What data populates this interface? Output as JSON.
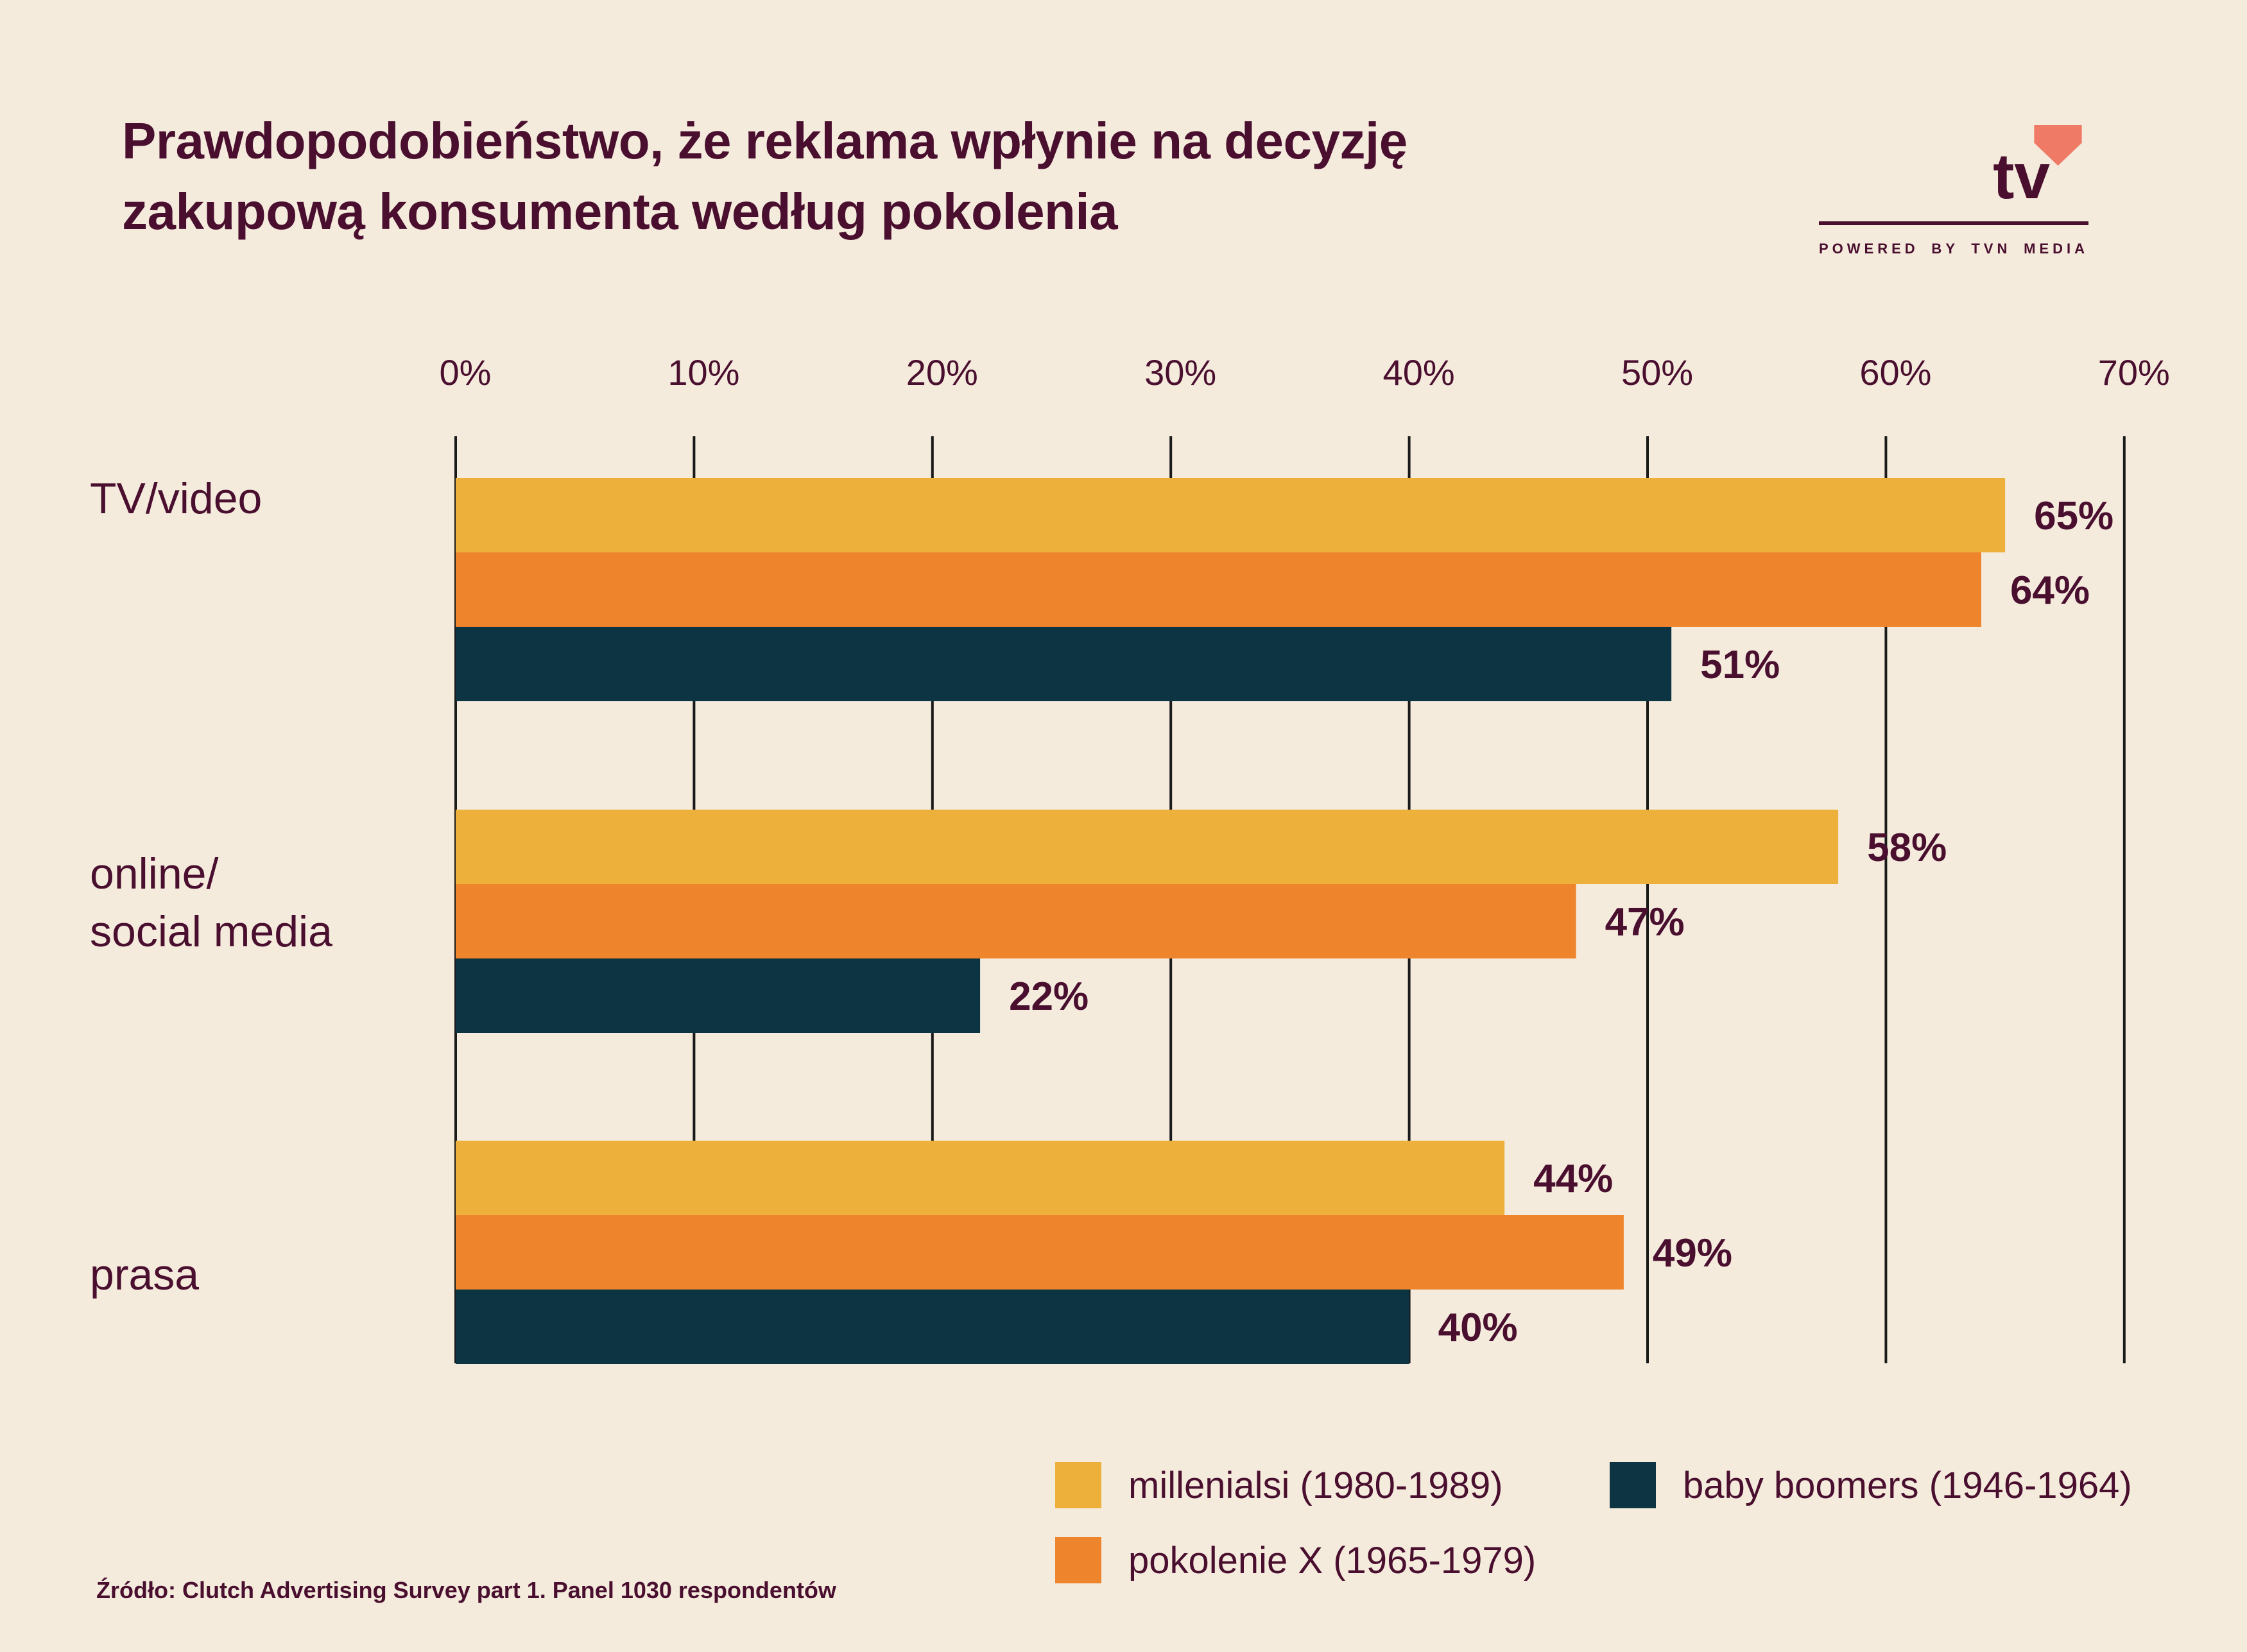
{
  "title": {
    "line1": "Prawdopodobieństwo, że reklama wpłynie na decyzję",
    "line2": "zakupową konsumenta według pokolenia"
  },
  "logo": {
    "mark": "tv",
    "icon": "heart-icon",
    "caption": "POWERED BY TVN MEDIA"
  },
  "source": "Źródło: Clutch Advertising Survey part 1. Panel 1030 respondentów",
  "colors": {
    "background": "#f4ebdd",
    "text": "#4a0f2f",
    "millenials": "#ecb03b",
    "genx": "#ee842c",
    "boomers": "#0c3442",
    "heart": "#ef7b66"
  },
  "chart_data": {
    "type": "bar",
    "orientation": "horizontal",
    "title": "Prawdopodobieństwo, że reklama wpłynie na decyzję zakupową konsumenta według pokolenia",
    "categories": [
      {
        "lines": [
          "TV/video"
        ]
      },
      {
        "lines": [
          "online/",
          "social media"
        ]
      },
      {
        "lines": [
          "prasa"
        ]
      }
    ],
    "series": [
      {
        "name": "millenialsi (1980-1989)",
        "color": "#ecb03b",
        "values": [
          65,
          58,
          44
        ]
      },
      {
        "name": "pokolenie X (1965-1979)",
        "color": "#ee842c",
        "values": [
          64,
          47,
          49
        ]
      },
      {
        "name": "baby boomers (1946-1964)",
        "color": "#0c3442",
        "values": [
          51,
          22,
          40
        ]
      }
    ],
    "value_labels": [
      [
        "65%",
        "58%",
        "44%"
      ],
      [
        "64%",
        "47%",
        "49%"
      ],
      [
        "51%",
        "22%",
        "40%"
      ]
    ],
    "xlim": [
      0,
      70
    ],
    "xticks": [
      0,
      10,
      20,
      30,
      40,
      50,
      60,
      70
    ],
    "xtick_labels": [
      "0%",
      "10%",
      "20%",
      "30%",
      "40%",
      "50%",
      "60%",
      "70%"
    ],
    "xaxis_position": "top",
    "grid": true,
    "legend_position": "bottom-right"
  }
}
